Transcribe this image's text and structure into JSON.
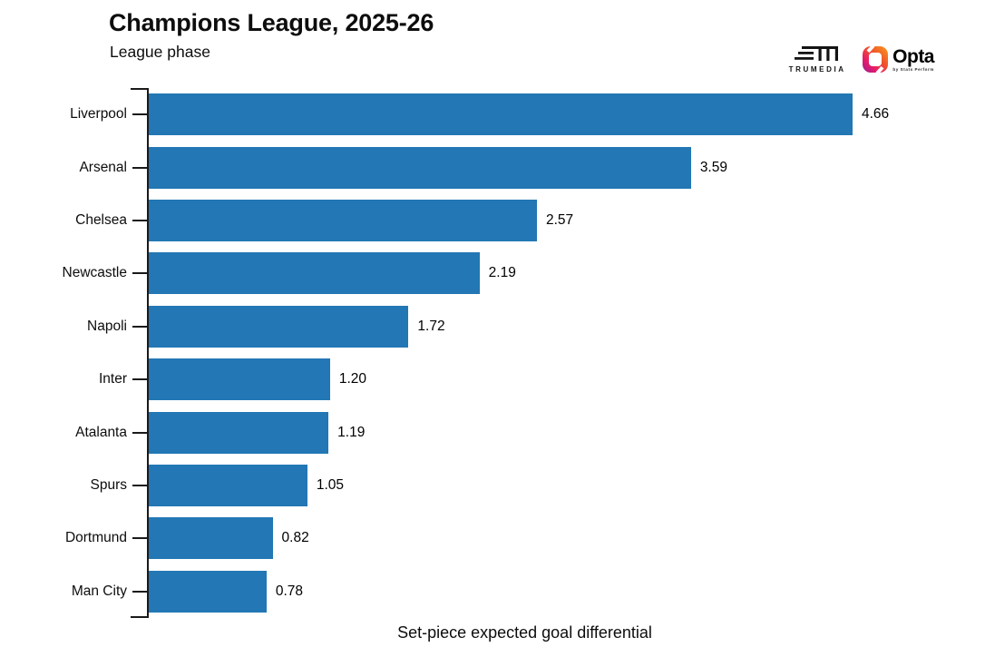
{
  "logos": {
    "trumedia_label": "TRUMEDIA",
    "opta_label": "Opta",
    "opta_tagline": "by Stats Perform"
  },
  "chart_data": {
    "type": "bar",
    "orientation": "horizontal",
    "title": "Champions League, 2025-26",
    "subtitle": "League phase",
    "xlabel": "Set-piece expected goal differential",
    "categories": [
      "Liverpool",
      "Arsenal",
      "Chelsea",
      "Newcastle",
      "Napoli",
      "Inter",
      "Atalanta",
      "Spurs",
      "Dortmund",
      "Man City"
    ],
    "values": [
      4.66,
      3.59,
      2.57,
      2.19,
      1.72,
      1.2,
      1.19,
      1.05,
      0.82,
      0.78
    ],
    "value_labels": [
      "4.66",
      "3.59",
      "2.57",
      "2.19",
      "1.72",
      "1.20",
      "1.19",
      "1.05",
      "0.82",
      "0.78"
    ],
    "xlim": [
      0,
      4.66
    ],
    "grid": false,
    "legend": null,
    "bar_color": "#2277b4",
    "axis_color": "#1a1a1a",
    "value_label_position": "right-of-bar"
  }
}
